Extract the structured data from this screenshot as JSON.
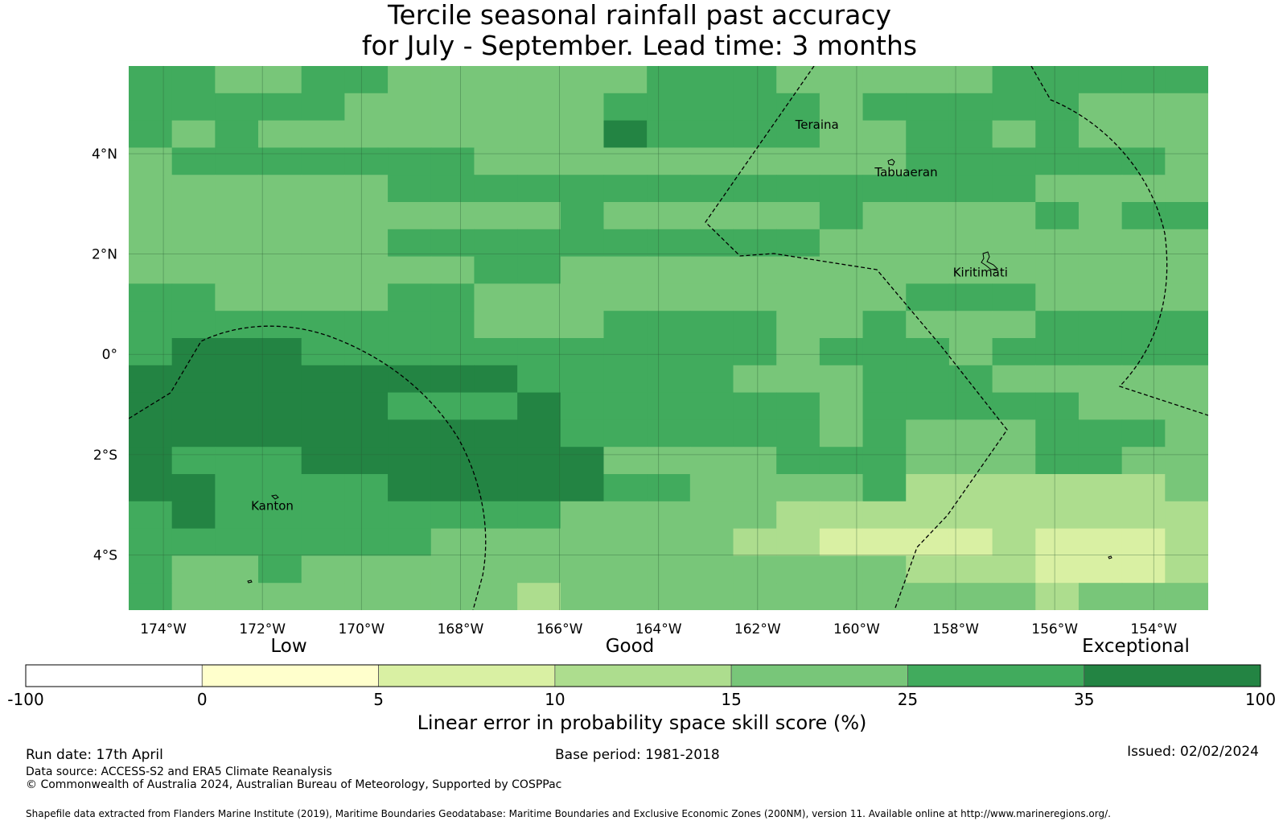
{
  "title": {
    "line1": "Tercile seasonal rainfall past accuracy",
    "line2": "for July - September. Lead time: 3 months"
  },
  "map": {
    "lon_range": [
      -174.7,
      -152.9
    ],
    "lat_range": [
      -5.1,
      5.75
    ],
    "x_ticks": [
      "174°W",
      "172°W",
      "170°W",
      "168°W",
      "166°W",
      "164°W",
      "162°W",
      "160°W",
      "158°W",
      "156°W",
      "154°W"
    ],
    "x_tick_values": [
      -174,
      -172,
      -170,
      -168,
      -166,
      -164,
      -162,
      -160,
      -158,
      -156,
      -154
    ],
    "y_ticks": [
      "4°N",
      "2°N",
      "0°",
      "2°S",
      "4°S"
    ],
    "y_tick_values": [
      4,
      2,
      0,
      -2,
      -4
    ],
    "places": [
      {
        "name": "Teraina",
        "lon": -160.8,
        "lat": 4.5
      },
      {
        "name": "Tabuaeran",
        "lon": -159.0,
        "lat": 3.55
      },
      {
        "name": "Kiritimati",
        "lon": -157.5,
        "lat": 1.55
      },
      {
        "name": "Kanton",
        "lon": -171.8,
        "lat": -3.1
      }
    ],
    "grid_rows_skill_class": [
      "5544554444445554444455555",
      "5555544444455555455555444",
      "5454444444465555445545444",
      "4555555544444444445555554",
      "4444445555555555555554444",
      "4444444444544444544445455",
      "4444445555555555444444444",
      "4444444455444444444444444",
      "5544445544444444445554444",
      "5555555544455554454445555",
      "5666555555555554555455555",
      "6666666665555544455544444",
      "6666665556555555455555444",
      "6666666666555555454445554",
      "6555666666644445554445544",
      "6655556666655444453333334",
      "5655555555444443333333333",
      "5555555444444433222232223",
      "5445444444444444443332223",
      "5444444443444444444443444"
    ],
    "skill_colors": [
      "#ffffff",
      "#ffffcc",
      "#d9f0a3",
      "#addd8e",
      "#78c679",
      "#41ab5d",
      "#238443"
    ]
  },
  "colorbar": {
    "category_labels": [
      "Low",
      "Good",
      "Exceptional"
    ],
    "tick_labels": [
      "-100",
      "0",
      "5",
      "10",
      "15",
      "25",
      "35",
      "100"
    ],
    "title": "Linear error in probability space skill score (%)"
  },
  "footer": {
    "run_date": "Run date: 17th April",
    "base_period": "Base period: 1981-2018",
    "issued": "Issued: 02/02/2024",
    "data_source": "Data source: ACCESS-S2 and ERA5 Climate Reanalysis",
    "copyright": "© Commonwealth of Australia 2024, Australian Bureau of Meteorology, Supported by COSPPac",
    "shapefile": "Shapefile data extracted from Flanders Marine Institute (2019), Maritime Boundaries Geodatabase: Maritime Boundaries and Exclusive Economic Zones (200NM), version 11. Available online at http://www.marineregions.org/."
  }
}
